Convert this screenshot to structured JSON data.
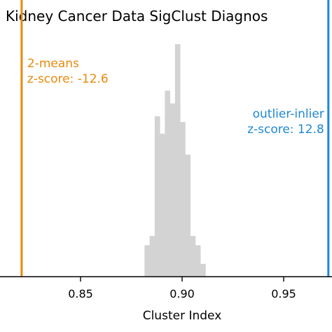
{
  "chart_data": {
    "type": "histogram",
    "title": "Kidney Cancer Data SigClust Diagnos",
    "xlabel": "Cluster Index",
    "ylabel": "",
    "xlim": [
      0.8,
      0.975
    ],
    "ylim": [
      0,
      1
    ],
    "xticks": [
      {
        "value": 0.85,
        "label": "0.85"
      },
      {
        "value": 0.9,
        "label": "0.90"
      },
      {
        "value": 0.95,
        "label": "0.95"
      }
    ],
    "grid": false,
    "bar_color": "#d3d3d3",
    "bins": [
      {
        "x0": 0.8815,
        "x1": 0.884,
        "height": 0.135
      },
      {
        "x0": 0.884,
        "x1": 0.8865,
        "height": 0.175
      },
      {
        "x0": 0.8865,
        "x1": 0.889,
        "height": 0.69
      },
      {
        "x0": 0.889,
        "x1": 0.8915,
        "height": 0.615
      },
      {
        "x0": 0.8915,
        "x1": 0.894,
        "height": 0.8
      },
      {
        "x0": 0.894,
        "x1": 0.8965,
        "height": 0.745
      },
      {
        "x0": 0.8965,
        "x1": 0.899,
        "height": 1.0
      },
      {
        "x0": 0.899,
        "x1": 0.9015,
        "height": 0.665
      },
      {
        "x0": 0.9015,
        "x1": 0.904,
        "height": 0.525
      },
      {
        "x0": 0.904,
        "x1": 0.9065,
        "height": 0.175
      },
      {
        "x0": 0.9065,
        "x1": 0.909,
        "height": 0.135
      },
      {
        "x0": 0.909,
        "x1": 0.9115,
        "height": 0.055
      }
    ],
    "reference_lines": [
      {
        "name": "2-means",
        "x": 0.821,
        "color": "#e8890c",
        "label_lines": [
          "2-means",
          "z-score: -12.6"
        ],
        "label_side": "right"
      },
      {
        "name": "outlier-inlier",
        "x": 0.972,
        "color": "#1f88d6",
        "label_lines": [
          "outlier-inlier",
          "z-score: 12.8"
        ],
        "label_side": "left"
      }
    ]
  }
}
